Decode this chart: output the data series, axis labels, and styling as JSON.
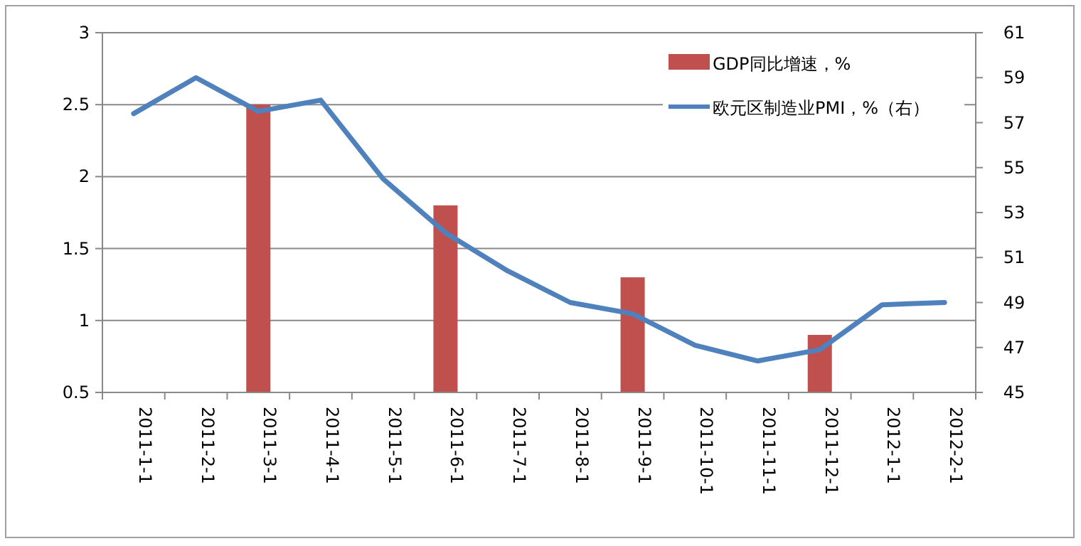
{
  "chart_data": {
    "type": "bar",
    "categories": [
      "2011-1-1",
      "2011-2-1",
      "2011-3-1",
      "2011-4-1",
      "2011-5-1",
      "2011-6-1",
      "2011-7-1",
      "2011-8-1",
      "2011-9-1",
      "2011-10-1",
      "2011-11-1",
      "2011-12-1",
      "2012-1-1",
      "2012-2-1"
    ],
    "series": [
      {
        "name": "GDP同比增速，%",
        "color": "#c0504d",
        "values": [
          null,
          null,
          2.5,
          null,
          null,
          1.8,
          null,
          null,
          1.3,
          null,
          null,
          0.9,
          null,
          null
        ]
      },
      {
        "name": "欧元区制造业PMI，%（右）",
        "type": "line",
        "axis": "y2",
        "color": "#4f81bd",
        "values": [
          57.4,
          59.0,
          57.5,
          58.0,
          54.5,
          52.1,
          50.4,
          49.0,
          48.5,
          47.1,
          46.4,
          46.9,
          48.9,
          49.0
        ]
      }
    ],
    "ylim": [
      0.5,
      3
    ],
    "yticks": [
      0.5,
      1,
      1.5,
      2,
      2.5,
      3
    ],
    "y2lim": [
      45,
      61
    ],
    "y2ticks": [
      45,
      47,
      49,
      51,
      53,
      55,
      57,
      59,
      61
    ],
    "grid": "y",
    "legend": "top right"
  }
}
